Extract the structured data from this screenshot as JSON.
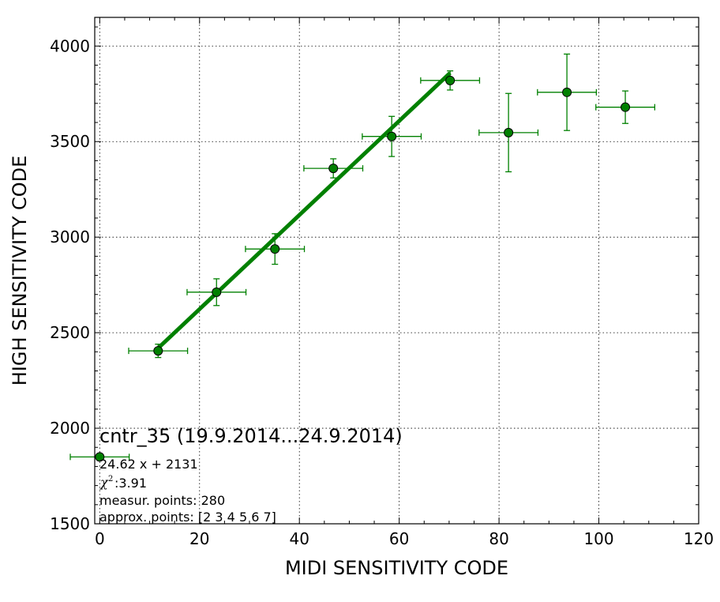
{
  "chart_data": {
    "type": "scatter",
    "title": "",
    "xlabel": "MIDI SENSITIVITY CODE",
    "ylabel": "HIGH SENSITIVITY CODE",
    "xlim": [
      -1,
      120
    ],
    "ylim": [
      1500,
      4150
    ],
    "grid": true,
    "x_ticks": [
      0,
      20,
      40,
      60,
      80,
      100,
      120
    ],
    "y_ticks": [
      1500,
      2000,
      2500,
      3000,
      3500,
      4000
    ],
    "x_tick_labels": [
      "0",
      "20",
      "40",
      "60",
      "80",
      "100",
      "120"
    ],
    "y_tick_labels": [
      "1500",
      "2000",
      "2500",
      "3000",
      "3500",
      "4000"
    ],
    "marker_color": "#008000",
    "line_color": "#008000",
    "points": [
      {
        "x": 11.7,
        "y": 2405,
        "xerr": 5.9,
        "yerr": 35
      },
      {
        "x": 23.4,
        "y": 2712,
        "xerr": 5.9,
        "yerr": 70
      },
      {
        "x": 35.1,
        "y": 2938,
        "xerr": 5.9,
        "yerr": 80
      },
      {
        "x": 46.8,
        "y": 3360,
        "xerr": 5.9,
        "yerr": 50
      },
      {
        "x": 58.5,
        "y": 3527,
        "xerr": 5.9,
        "yerr": 105
      },
      {
        "x": 70.2,
        "y": 3820,
        "xerr": 5.9,
        "yerr": 50
      },
      {
        "x": 81.9,
        "y": 3547,
        "xerr": 5.9,
        "yerr": 205
      },
      {
        "x": 93.6,
        "y": 3758,
        "xerr": 5.9,
        "yerr": 200
      },
      {
        "x": 105.3,
        "y": 3680,
        "xerr": 5.9,
        "yerr": 85
      }
    ],
    "fit": {
      "slope": 24.62,
      "intercept": 2131,
      "x_range": [
        11.7,
        70.2
      ]
    },
    "legend": {
      "title": "cntr_35 (19.9.2014...24.9.2014)",
      "fit_text": "24.62 x + 2131",
      "chi_symbol": "χ",
      "chi_sup": "2",
      "chi_value": " :3.91",
      "measur_points": "measur. points: 280",
      "approx_points": "approx. points: [2 3 4 5 6 7]",
      "marker_x": 0,
      "marker_y": 1850,
      "marker_xerr": 5.9
    }
  }
}
